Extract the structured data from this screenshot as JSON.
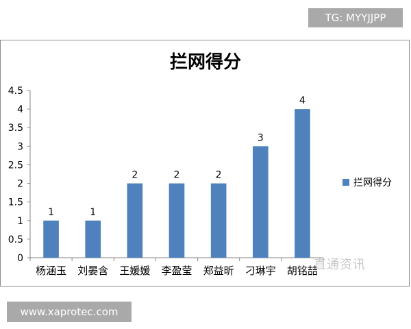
{
  "watermark_top": "TG: MYYJJPP",
  "watermark_bottom": "www.xaprotec.com",
  "corner_watermark": "直通资讯",
  "chart_data": {
    "type": "bar",
    "title": "拦网得分",
    "categories": [
      "杨涵玉",
      "刘晏含",
      "王媛媛",
      "李盈莹",
      "郑益昕",
      "刁琳宇",
      "胡铭喆"
    ],
    "series": [
      {
        "name": "拦网得分",
        "values": [
          1,
          1,
          2,
          2,
          2,
          3,
          4
        ],
        "color": "#4f81bd"
      }
    ],
    "data_labels": [
      "1",
      "1",
      "2",
      "2",
      "2",
      "3",
      "4"
    ],
    "ylim": [
      0,
      4.5
    ],
    "yticks": [
      "0",
      "0.5",
      "1",
      "1.5",
      "2",
      "2.5",
      "3",
      "3.5",
      "4",
      "4.5"
    ],
    "legend_position": "right",
    "grid": false
  }
}
